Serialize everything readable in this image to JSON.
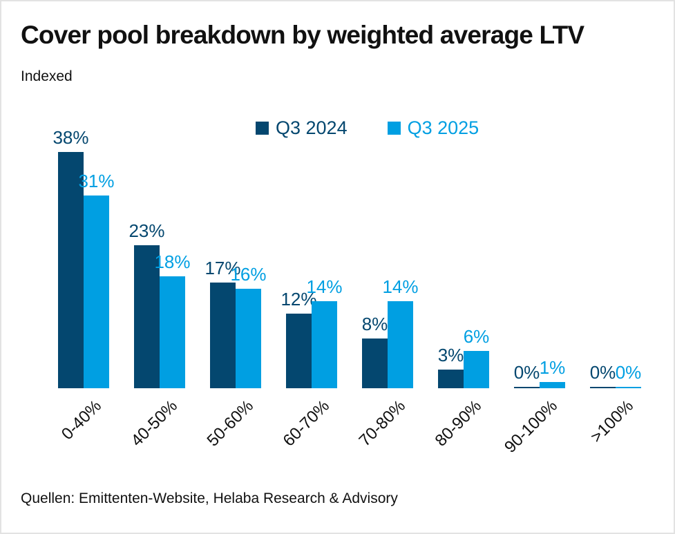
{
  "header": {
    "title": "Cover pool breakdown by weighted average LTV",
    "subtitle": "Indexed"
  },
  "footer": {
    "source": "Quellen: Emittenten-Website, Helaba Research & Advisory"
  },
  "chart_data": {
    "type": "bar",
    "title": "Cover pool breakdown by weighted average LTV",
    "subtitle": "Indexed",
    "categories": [
      "0-40%",
      "40-50%",
      "50-60%",
      "60-70%",
      "70-80%",
      "80-90%",
      "90-100%",
      ">100%"
    ],
    "series": [
      {
        "name": "Q3 2024",
        "color": "#04476f",
        "values": [
          38,
          23,
          17,
          12,
          8,
          3,
          0,
          0
        ]
      },
      {
        "name": "Q3 2025",
        "color": "#009fe2",
        "values": [
          31,
          18,
          16,
          14,
          14,
          6,
          1,
          0
        ]
      }
    ],
    "value_suffix": "%",
    "xlabel": "",
    "ylabel": "",
    "ylim": [
      0,
      40
    ],
    "grid": false,
    "legend_position": "top",
    "data_labels": true,
    "x_tick_rotation": 45
  }
}
